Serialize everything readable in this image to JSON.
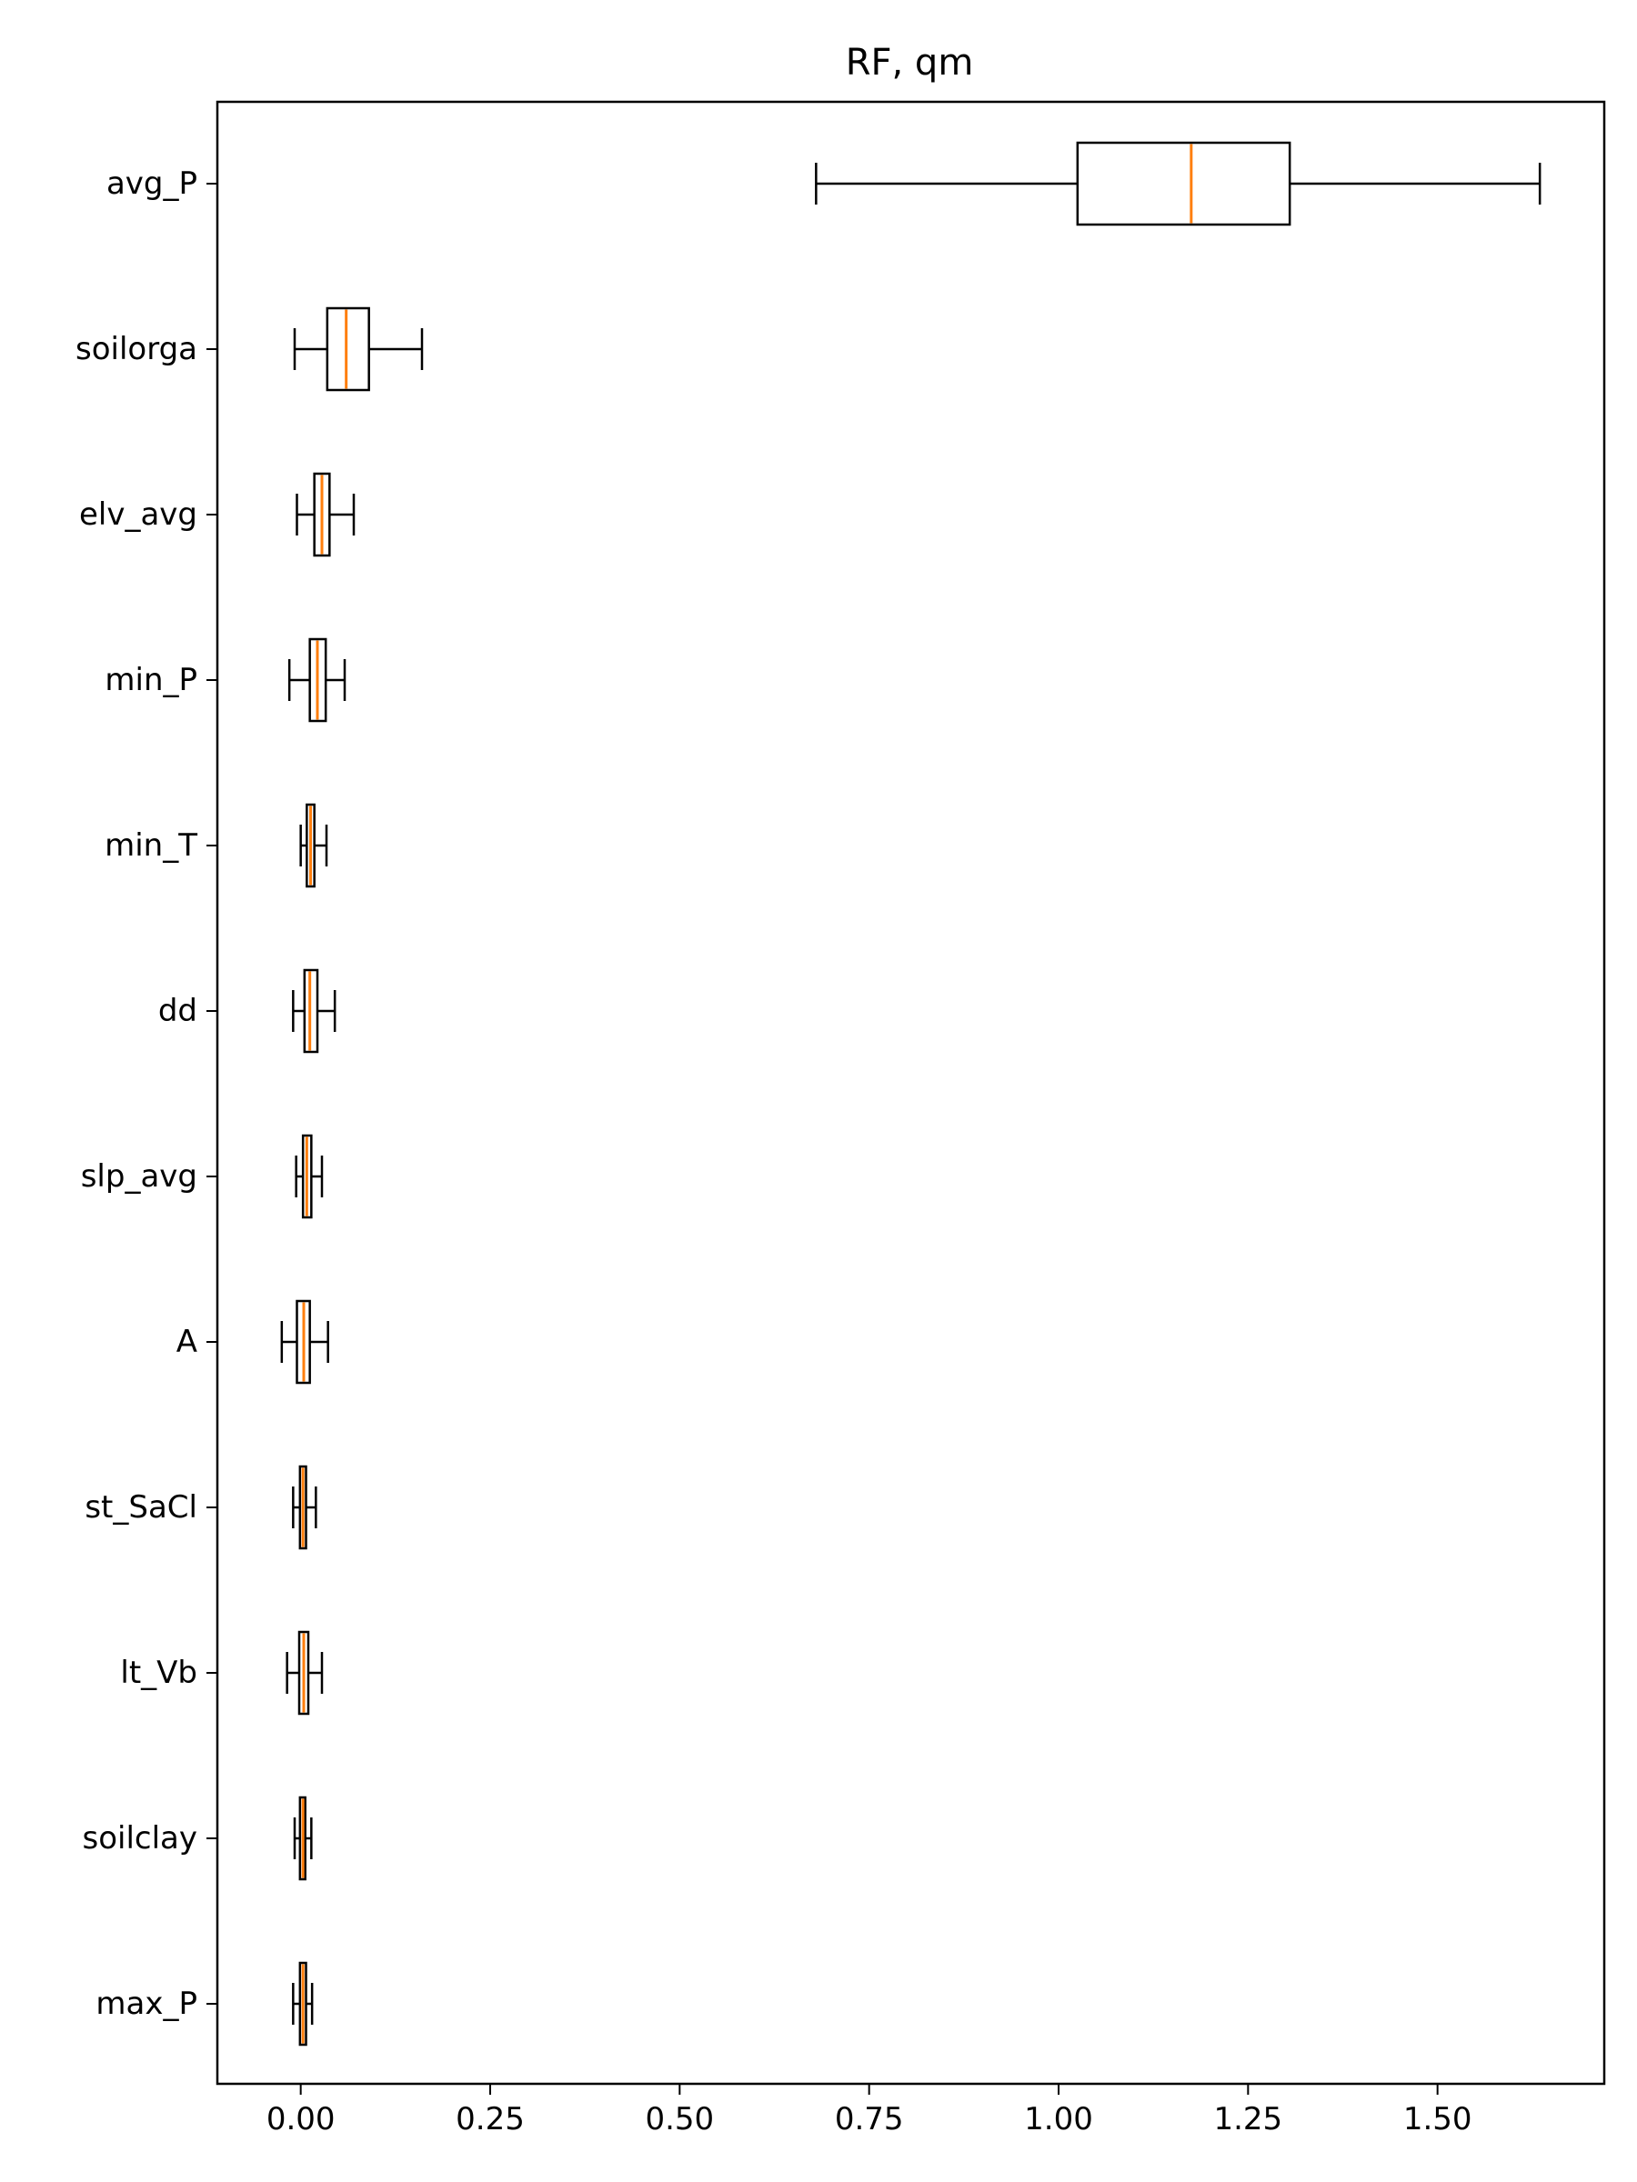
{
  "chart_data": {
    "type": "boxplot",
    "orientation": "horizontal",
    "title": "RF, qm",
    "xlabel": "",
    "ylabel": "",
    "xlim": [
      -0.11,
      1.72
    ],
    "xticks": [
      "0.00",
      "0.25",
      "0.50",
      "0.75",
      "1.00",
      "1.25",
      "1.50"
    ],
    "grid": false,
    "colors": {
      "box": "#000000",
      "median": "#ff7f0e",
      "background": "#ffffff"
    },
    "boxes": [
      {
        "label": "avg_P",
        "whislo": 0.68,
        "q1": 1.025,
        "med": 1.175,
        "q3": 1.305,
        "whishi": 1.635
      },
      {
        "label": "soilorga",
        "whislo": -0.008,
        "q1": 0.035,
        "med": 0.06,
        "q3": 0.09,
        "whishi": 0.16
      },
      {
        "label": "elv_avg",
        "whislo": -0.005,
        "q1": 0.018,
        "med": 0.028,
        "q3": 0.038,
        "whishi": 0.07
      },
      {
        "label": "min_P",
        "whislo": -0.015,
        "q1": 0.012,
        "med": 0.022,
        "q3": 0.033,
        "whishi": 0.058
      },
      {
        "label": "min_T",
        "whislo": 0.0,
        "q1": 0.008,
        "med": 0.013,
        "q3": 0.018,
        "whishi": 0.034
      },
      {
        "label": "dd",
        "whislo": -0.01,
        "q1": 0.005,
        "med": 0.012,
        "q3": 0.022,
        "whishi": 0.045
      },
      {
        "label": "slp_avg",
        "whislo": -0.006,
        "q1": 0.003,
        "med": 0.008,
        "q3": 0.014,
        "whishi": 0.028
      },
      {
        "label": "A",
        "whislo": -0.025,
        "q1": -0.005,
        "med": 0.004,
        "q3": 0.012,
        "whishi": 0.036
      },
      {
        "label": "st_SaCl",
        "whislo": -0.01,
        "q1": -0.001,
        "med": 0.003,
        "q3": 0.007,
        "whishi": 0.02
      },
      {
        "label": "lt_Vb",
        "whislo": -0.018,
        "q1": -0.002,
        "med": 0.004,
        "q3": 0.01,
        "whishi": 0.028
      },
      {
        "label": "soilclay",
        "whislo": -0.008,
        "q1": -0.001,
        "med": 0.003,
        "q3": 0.006,
        "whishi": 0.014
      },
      {
        "label": "max_P",
        "whislo": -0.01,
        "q1": -0.001,
        "med": 0.003,
        "q3": 0.007,
        "whishi": 0.015
      }
    ]
  }
}
